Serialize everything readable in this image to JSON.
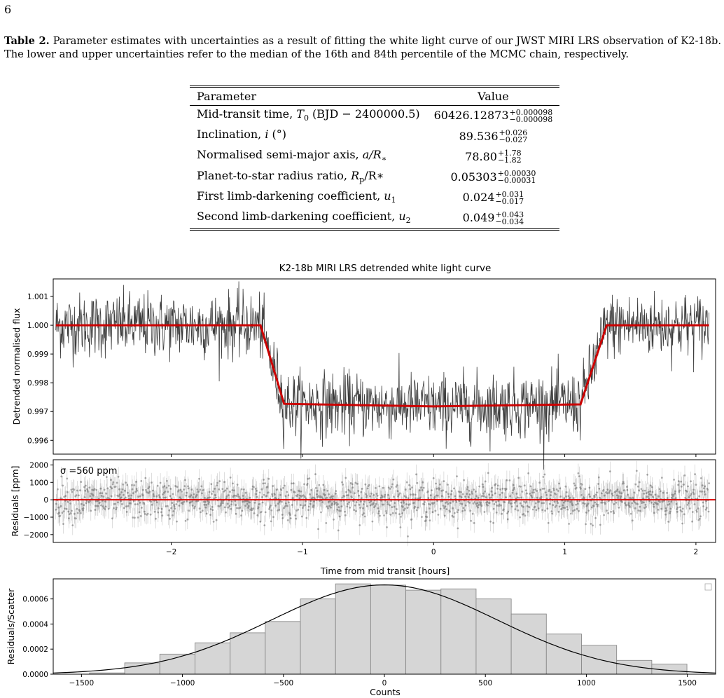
{
  "page_number": "6",
  "caption": {
    "label": "Table 2.",
    "text": "Parameter estimates with uncertainties as a result of fitting the white light curve of our JWST MIRI LRS observation of K2-18b.  The lower and upper uncertainties refer to the median of the 16th and 84th percentile of the MCMC chain, respectively."
  },
  "table": {
    "headers": [
      "Parameter",
      "Value"
    ],
    "rows": [
      {
        "name": "Mid-transit time, ",
        "sym": "T",
        "sub": "0",
        "tail": " (BJD − 2400000.5)",
        "value": "60426.12873",
        "plus": "+0.000098",
        "minus": "−0.000098"
      },
      {
        "name": "Inclination, ",
        "sym": "i",
        "sub": "",
        "tail": " (°)",
        "value": "89.536",
        "plus": "+0.026",
        "minus": "−0.027"
      },
      {
        "name": "Normalised semi-major axis, ",
        "sym": "a/R",
        "sub": "∗",
        "tail": "",
        "value": "78.80",
        "plus": "+1.78",
        "minus": "−1.82"
      },
      {
        "name": "Planet-to-star radius ratio, ",
        "sym": "R",
        "sub": "p",
        "tail": "/R∗",
        "value": "0.05303",
        "plus": "+0.00030",
        "minus": "−0.00031"
      },
      {
        "name": "First limb-darkening coefficient, ",
        "sym": "u",
        "sub": "1",
        "tail": "",
        "value": "0.024",
        "plus": "+0.031",
        "minus": "−0.017"
      },
      {
        "name": "Second limb-darkening coefficient, ",
        "sym": "u",
        "sub": "2",
        "tail": "",
        "value": "0.049",
        "plus": "+0.043",
        "minus": "−0.034"
      }
    ]
  },
  "chart_data": [
    {
      "type": "line",
      "title": "K2-18b MIRI LRS detrended white light curve",
      "ylabel": "Detrended normalised flux",
      "xlim": [
        -2.9,
        2.15
      ],
      "ylim": [
        0.99552,
        1.00161
      ],
      "yticks": [
        "0.996",
        "0.997",
        "0.998",
        "0.999",
        "1.000",
        "1.001"
      ],
      "series": [
        {
          "role": "data",
          "color": "#3c3c3c",
          "baseline_out": 1.0,
          "baseline_in": 0.99718,
          "scatter": 0.00056
        },
        {
          "role": "model",
          "color": "#cc0000",
          "x": [
            -2.9,
            -1.32,
            -1.14,
            0.0,
            1.12,
            1.32,
            2.1
          ],
          "y": [
            1.0,
            1.0,
            0.99727,
            0.99718,
            0.99725,
            1.0,
            1.0
          ]
        }
      ]
    },
    {
      "type": "scatter",
      "ylabel": "Residuals [ppm]",
      "xlabel": "Time from mid transit [hours]",
      "annotation": "σ =560 ppm",
      "xlim": [
        -2.9,
        2.15
      ],
      "ylim": [
        -2450,
        2300
      ],
      "xticks": [
        "−2",
        "−1",
        "0",
        "1",
        "2"
      ],
      "yticks": [
        "−2000",
        "−1000",
        "0",
        "1000",
        "2000"
      ],
      "zero_line_color": "#dd0000",
      "sigma_ppm": 560
    },
    {
      "type": "bar",
      "ylabel": "Residuals/Scatter",
      "xlabel": "Counts",
      "xlim": [
        -1640,
        1640
      ],
      "ylim": [
        0,
        0.00076
      ],
      "xticks": [
        "−1500",
        "−1000",
        "−500",
        "0",
        "500",
        "1000",
        "1500"
      ],
      "yticks": [
        "0.0000",
        "0.0002",
        "0.0004",
        "0.0006"
      ],
      "bin_edges": [
        -1460,
        -1286,
        -1112,
        -938,
        -764,
        -590,
        -416,
        -242,
        -68,
        106,
        280,
        454,
        628,
        802,
        976,
        1150,
        1324
      ],
      "values": [
        1e-05,
        9e-05,
        0.00016,
        0.00025,
        0.00033,
        0.00042,
        0.0006,
        0.00072,
        0.00071,
        0.00067,
        0.00068,
        0.0006,
        0.00048,
        0.00032,
        0.00023,
        0.00011,
        8e-05
      ],
      "fit": {
        "mean": 0,
        "sigma": 560,
        "peak": 0.000712
      }
    }
  ]
}
